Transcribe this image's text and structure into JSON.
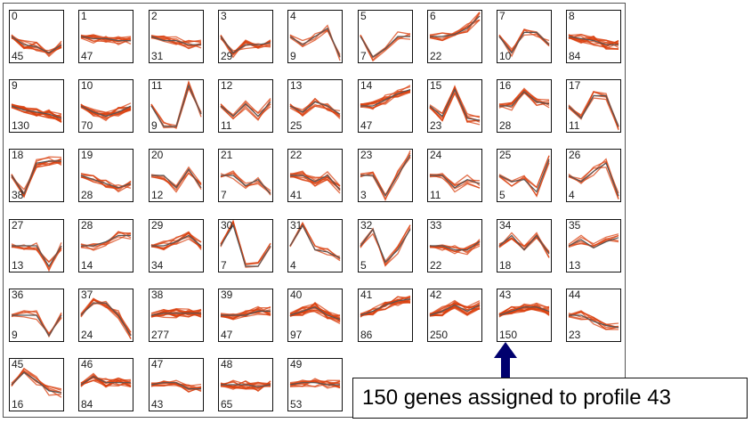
{
  "chart_data": {
    "type": "line",
    "profiles": [
      {
        "id": "0",
        "count": "45",
        "shape": [
          0.0,
          -0.4,
          -0.5,
          -0.8,
          -0.4
        ]
      },
      {
        "id": "1",
        "count": "47",
        "shape": [
          0.0,
          -0.1,
          -0.1,
          -0.2,
          -0.2
        ]
      },
      {
        "id": "2",
        "count": "31",
        "shape": [
          0.0,
          -0.2,
          -0.2,
          -0.4,
          -0.4
        ]
      },
      {
        "id": "3",
        "count": "29",
        "shape": [
          0.0,
          -0.8,
          -0.4,
          -0.4,
          -0.3
        ]
      },
      {
        "id": "4",
        "count": "9",
        "shape": [
          0.0,
          -0.4,
          0.0,
          0.4,
          -1.0
        ]
      },
      {
        "id": "5",
        "count": "7",
        "shape": [
          0.0,
          -1.0,
          -0.6,
          0.0,
          0.0
        ]
      },
      {
        "id": "6",
        "count": "22",
        "shape": [
          0.0,
          0.0,
          0.1,
          0.4,
          1.0
        ]
      },
      {
        "id": "7",
        "count": "10",
        "shape": [
          0.0,
          -0.8,
          0.2,
          0.2,
          -0.4
        ]
      },
      {
        "id": "8",
        "count": "84",
        "shape": [
          0.0,
          -0.1,
          -0.2,
          -0.4,
          -0.4
        ]
      },
      {
        "id": "9",
        "count": "130",
        "shape": [
          0.0,
          -0.2,
          -0.3,
          -0.4,
          -0.6
        ]
      },
      {
        "id": "10",
        "count": "70",
        "shape": [
          0.0,
          -0.3,
          -0.5,
          -0.3,
          0.0
        ]
      },
      {
        "id": "11",
        "count": "9",
        "shape": [
          0.0,
          -1.0,
          -1.0,
          1.0,
          -0.4
        ]
      },
      {
        "id": "12",
        "count": "11",
        "shape": [
          0.0,
          -0.5,
          0.1,
          -0.5,
          0.2
        ]
      },
      {
        "id": "13",
        "count": "25",
        "shape": [
          0.0,
          -0.3,
          0.2,
          0.0,
          -0.4
        ]
      },
      {
        "id": "14",
        "count": "47",
        "shape": [
          0.0,
          0.0,
          0.3,
          0.6,
          0.8
        ]
      },
      {
        "id": "15",
        "count": "23",
        "shape": [
          0.0,
          -0.5,
          0.8,
          -0.6,
          -0.7
        ]
      },
      {
        "id": "16",
        "count": "28",
        "shape": [
          0.0,
          0.0,
          0.7,
          0.2,
          0.1
        ]
      },
      {
        "id": "17",
        "count": "11",
        "shape": [
          0.0,
          -0.6,
          0.5,
          0.5,
          -1.0
        ]
      },
      {
        "id": "18",
        "count": "38",
        "shape": [
          0.0,
          -0.9,
          0.6,
          0.7,
          0.7
        ]
      },
      {
        "id": "19",
        "count": "28",
        "shape": [
          0.0,
          -0.2,
          -0.4,
          -0.6,
          -0.4
        ]
      },
      {
        "id": "20",
        "count": "12",
        "shape": [
          0.0,
          0.0,
          -0.6,
          0.3,
          -0.6
        ]
      },
      {
        "id": "21",
        "count": "7",
        "shape": [
          0.0,
          0.0,
          -0.5,
          -0.2,
          -0.9
        ]
      },
      {
        "id": "22",
        "count": "41",
        "shape": [
          0.0,
          0.0,
          -0.3,
          0.0,
          -0.7
        ]
      },
      {
        "id": "23",
        "count": "3",
        "shape": [
          0.0,
          0.0,
          -1.0,
          0.0,
          1.0
        ]
      },
      {
        "id": "24",
        "count": "11",
        "shape": [
          0.0,
          0.0,
          -0.6,
          -0.2,
          -0.4
        ]
      },
      {
        "id": "25",
        "count": "5",
        "shape": [
          0.0,
          -0.3,
          -0.2,
          -0.8,
          0.8
        ]
      },
      {
        "id": "26",
        "count": "4",
        "shape": [
          0.0,
          -0.3,
          0.2,
          0.6,
          -1.0
        ]
      },
      {
        "id": "27",
        "count": "13",
        "shape": [
          0.0,
          0.0,
          0.0,
          -1.0,
          0.0
        ]
      },
      {
        "id": "28",
        "count": "14",
        "shape": [
          0.0,
          0.0,
          0.2,
          0.5,
          0.5
        ]
      },
      {
        "id": "29",
        "count": "34",
        "shape": [
          0.0,
          0.0,
          0.2,
          0.5,
          0.0
        ]
      },
      {
        "id": "30",
        "count": "7",
        "shape": [
          0.0,
          1.0,
          -1.0,
          -1.0,
          0.0
        ]
      },
      {
        "id": "31",
        "count": "4",
        "shape": [
          0.0,
          1.0,
          -0.2,
          -0.3,
          -0.6
        ]
      },
      {
        "id": "32",
        "count": "5",
        "shape": [
          0.0,
          0.8,
          -0.8,
          -0.2,
          0.8
        ]
      },
      {
        "id": "33",
        "count": "22",
        "shape": [
          0.0,
          0.0,
          -0.2,
          -0.2,
          0.2
        ]
      },
      {
        "id": "34",
        "count": "18",
        "shape": [
          0.0,
          0.5,
          -0.2,
          0.5,
          -0.4
        ]
      },
      {
        "id": "35",
        "count": "13",
        "shape": [
          0.0,
          0.3,
          -0.1,
          0.2,
          0.4
        ]
      },
      {
        "id": "36",
        "count": "9",
        "shape": [
          0.0,
          0.0,
          0.0,
          -1.0,
          0.0
        ]
      },
      {
        "id": "37",
        "count": "24",
        "shape": [
          0.0,
          0.6,
          0.6,
          0.0,
          -1.0
        ]
      },
      {
        "id": "38",
        "count": "277",
        "shape": [
          0.0,
          0.1,
          0.1,
          0.1,
          0.1
        ]
      },
      {
        "id": "39",
        "count": "47",
        "shape": [
          0.0,
          0.0,
          0.0,
          0.2,
          0.2
        ]
      },
      {
        "id": "40",
        "count": "97",
        "shape": [
          0.0,
          0.2,
          0.4,
          0.0,
          -0.2
        ]
      },
      {
        "id": "41",
        "count": "86",
        "shape": [
          0.0,
          0.2,
          0.5,
          0.7,
          0.8
        ]
      },
      {
        "id": "42",
        "count": "250",
        "shape": [
          0.0,
          0.2,
          0.5,
          0.2,
          0.5
        ]
      },
      {
        "id": "43",
        "count": "150",
        "shape": [
          0.0,
          0.2,
          0.4,
          0.4,
          0.2
        ]
      },
      {
        "id": "44",
        "count": "23",
        "shape": [
          0.0,
          0.0,
          -0.3,
          -0.5,
          -0.6
        ]
      },
      {
        "id": "45",
        "count": "16",
        "shape": [
          0.0,
          0.6,
          0.2,
          -0.3,
          -0.4
        ]
      },
      {
        "id": "46",
        "count": "84",
        "shape": [
          0.0,
          0.4,
          0.1,
          0.1,
          0.1
        ]
      },
      {
        "id": "47",
        "count": "43",
        "shape": [
          0.0,
          0.1,
          0.1,
          -0.2,
          -0.2
        ]
      },
      {
        "id": "48",
        "count": "65",
        "shape": [
          0.0,
          0.0,
          0.0,
          -0.1,
          0.0
        ]
      },
      {
        "id": "49",
        "count": "53",
        "shape": [
          0.0,
          0.1,
          0.1,
          0.0,
          0.0
        ]
      }
    ],
    "series_color": "#d9400f",
    "model_color": "#555555"
  },
  "callout": {
    "text": "150 genes assigned to profile 43",
    "arrow_color": "#00006e"
  }
}
